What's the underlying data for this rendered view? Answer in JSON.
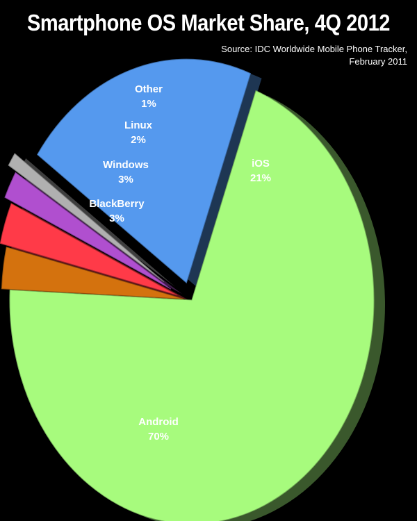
{
  "title": "Smartphone OS Market Share, 4Q 2012",
  "source_line1": "Source: IDC Worldwide Mobile Phone Tracker,",
  "source_line2": "February 2011",
  "chart_data": {
    "type": "pie",
    "title": "Smartphone OS Market Share, 4Q 2012",
    "slices": [
      {
        "label": "iOS",
        "value": 21,
        "display": "21%",
        "color": "#5599ee"
      },
      {
        "label": "Android",
        "value": 70,
        "display": "70%",
        "color": "#a7fb7d"
      },
      {
        "label": "BlackBerry",
        "value": 3,
        "display": "3%",
        "color": "#d4720e"
      },
      {
        "label": "Windows",
        "value": 3,
        "display": "3%",
        "color": "#ff3a48"
      },
      {
        "label": "Linux",
        "value": 2,
        "display": "2%",
        "color": "#b04fcf"
      },
      {
        "label": "Other",
        "value": 1,
        "display": "1%",
        "color": "#b0b0b0"
      }
    ]
  }
}
